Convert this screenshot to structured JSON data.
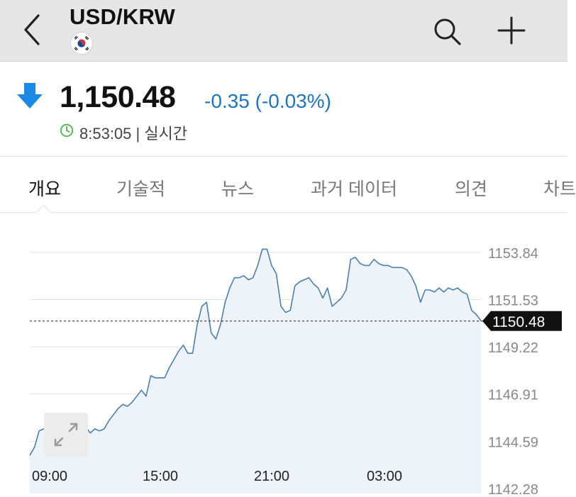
{
  "header": {
    "title": "USD/KRW",
    "back_icon": "chevron-left-icon",
    "search_icon": "search-icon",
    "add_icon": "plus-icon",
    "flag_icon": "south-korea-flag-icon"
  },
  "quote": {
    "price": "1,150.48",
    "change": "-0.35 (-0.03%)",
    "direction_icon": "arrow-down-icon",
    "time": "8:53:05 | 실시간",
    "colors": {
      "down": "#1f74c2",
      "arrow": "#1a8ae6",
      "clock": "#5cb85c"
    }
  },
  "tabs": [
    {
      "label": "개요",
      "active": true
    },
    {
      "label": "기술적",
      "active": false
    },
    {
      "label": "뉴스",
      "active": false
    },
    {
      "label": "과거 데이터",
      "active": false
    },
    {
      "label": "의견",
      "active": false
    },
    {
      "label": "차트",
      "active": false
    }
  ],
  "chart_data": {
    "type": "area",
    "x_tick_labels": [
      "09:00",
      "15:00",
      "21:00",
      "03:00"
    ],
    "y_tick_labels": [
      "1153.84",
      "1151.53",
      "1149.22",
      "1146.91",
      "1144.59",
      "1142.28"
    ],
    "ylim": [
      1142.28,
      1153.84
    ],
    "current_value": 1150.48,
    "current_label": "1150.48",
    "grid": true,
    "line_color": "#4a7fb0",
    "fill_color": "#eef3fa",
    "values": [
      1143.9,
      1144.3,
      1145.1,
      1145.2,
      1145.2,
      1145.2,
      1145.6,
      1145.8,
      1145.9,
      1145.5,
      1145.4,
      1145.2,
      1145.3,
      1145.0,
      1145.2,
      1145.1,
      1145.2,
      1145.6,
      1145.9,
      1146.2,
      1146.4,
      1146.3,
      1146.5,
      1146.8,
      1147.1,
      1146.8,
      1147.8,
      1147.7,
      1147.7,
      1147.7,
      1148.2,
      1148.6,
      1149.0,
      1149.3,
      1148.9,
      1148.9,
      1150.3,
      1151.2,
      1151.4,
      1149.9,
      1149.6,
      1150.3,
      1151.4,
      1152.1,
      1152.6,
      1152.6,
      1152.7,
      1152.5,
      1152.6,
      1153.2,
      1154.0,
      1154.0,
      1153.2,
      1152.8,
      1151.2,
      1150.9,
      1151.0,
      1152.2,
      1152.4,
      1152.5,
      1152.6,
      1152.3,
      1152.1,
      1151.6,
      1152.1,
      1151.2,
      1151.4,
      1151.6,
      1152.0,
      1153.5,
      1153.6,
      1153.3,
      1153.2,
      1153.2,
      1153.5,
      1153.3,
      1153.2,
      1153.2,
      1153.1,
      1153.1,
      1153.1,
      1153.0,
      1152.7,
      1152.2,
      1151.4,
      1152.0,
      1152.0,
      1151.9,
      1152.1,
      1151.9,
      1152.1,
      1152.0,
      1152.1,
      1151.9,
      1151.8,
      1151.0,
      1150.8,
      1150.5
    ]
  },
  "expand_icon": "expand-arrows-icon"
}
